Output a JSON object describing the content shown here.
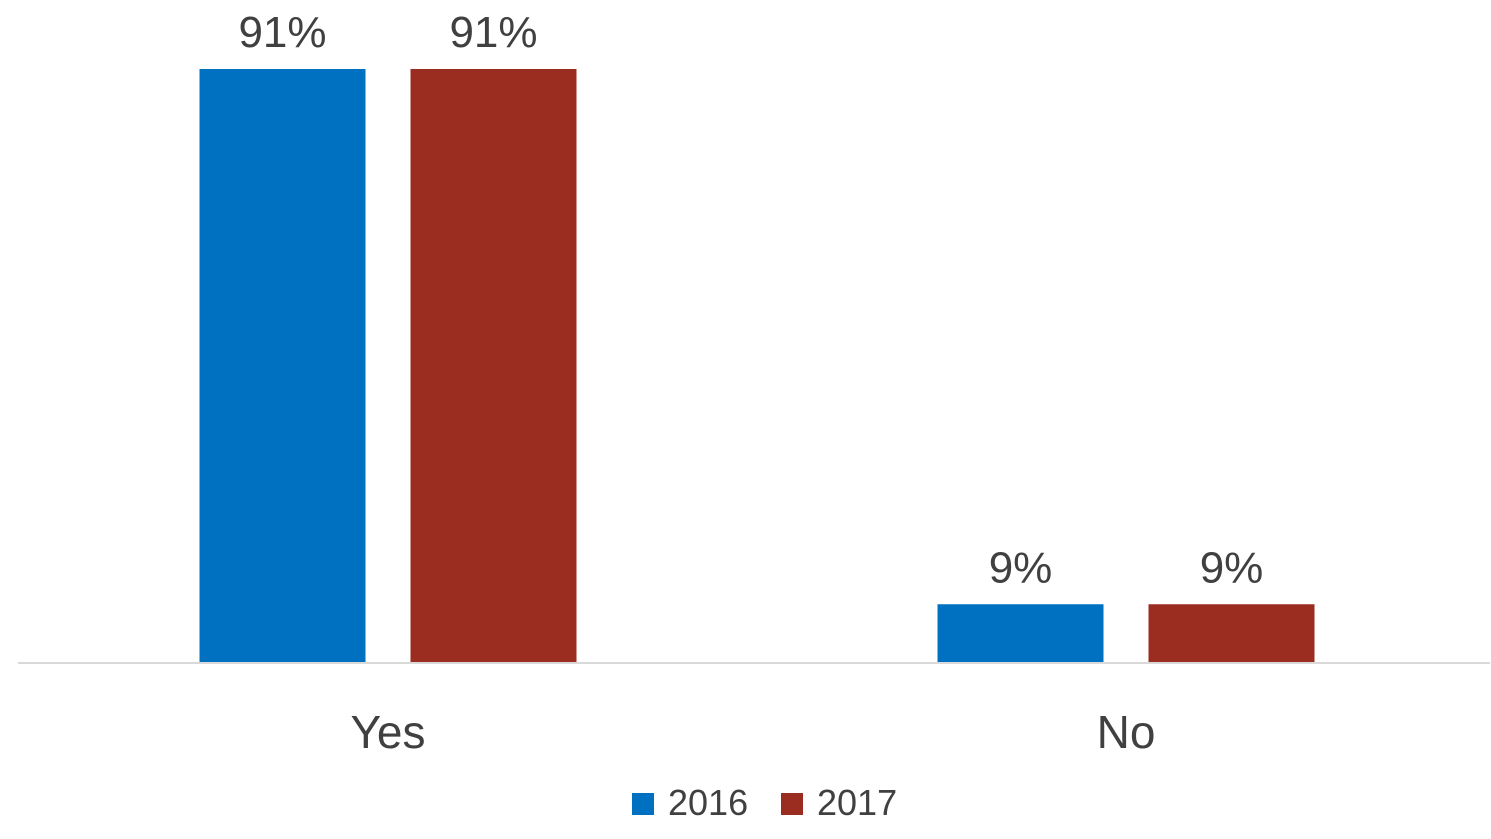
{
  "chart_data": {
    "type": "bar",
    "title": "",
    "xlabel": "",
    "ylabel": "",
    "categories": [
      "Yes",
      "No"
    ],
    "series": [
      {
        "name": "2016",
        "color": "#0070C0",
        "values": [
          91,
          9
        ],
        "labels": [
          "91%",
          "9%"
        ]
      },
      {
        "name": "2017",
        "color": "#9B2D20",
        "values": [
          91,
          9
        ],
        "labels": [
          "91%",
          "9%"
        ]
      }
    ],
    "ylim": [
      0,
      100
    ],
    "grid": false,
    "legend_position": "bottom",
    "axis_color": "#D9D9D9"
  }
}
